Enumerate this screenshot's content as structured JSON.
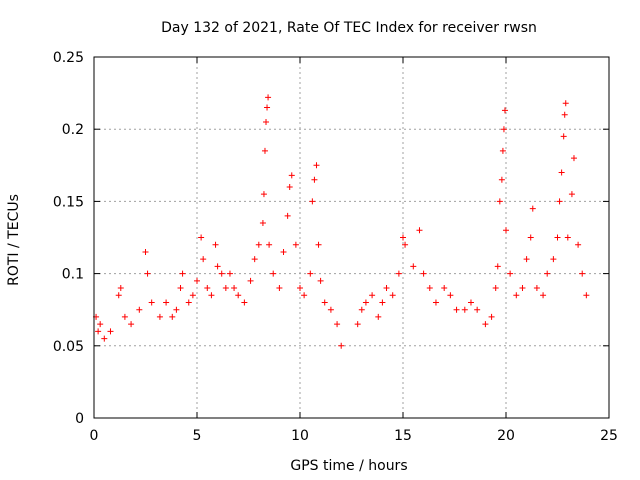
{
  "chart_data": {
    "type": "scatter",
    "title": "Day 132 of 2021, Rate Of TEC Index for receiver rwsn",
    "xlabel": "GPS time / hours",
    "ylabel": "ROTI / TECUs",
    "xlim": [
      0,
      25
    ],
    "ylim": [
      0,
      0.25
    ],
    "x_ticks": [
      "0",
      "5",
      "10",
      "15",
      "20",
      "25"
    ],
    "y_ticks": [
      "0",
      "0.05",
      "0.1",
      "0.15",
      "0.2",
      "0.25"
    ],
    "grid": true,
    "marker": "+",
    "color": "#ff0000",
    "series": [
      {
        "points": [
          [
            0.1,
            0.07
          ],
          [
            0.2,
            0.06
          ],
          [
            0.3,
            0.065
          ],
          [
            0.5,
            0.055
          ],
          [
            0.8,
            0.06
          ],
          [
            1.2,
            0.085
          ],
          [
            1.3,
            0.09
          ],
          [
            1.5,
            0.07
          ],
          [
            1.8,
            0.065
          ],
          [
            2.2,
            0.075
          ],
          [
            2.5,
            0.115
          ],
          [
            2.6,
            0.1
          ],
          [
            2.8,
            0.08
          ],
          [
            3.2,
            0.07
          ],
          [
            3.5,
            0.08
          ],
          [
            3.8,
            0.07
          ],
          [
            4.0,
            0.075
          ],
          [
            4.2,
            0.09
          ],
          [
            4.3,
            0.1
          ],
          [
            4.6,
            0.08
          ],
          [
            4.8,
            0.085
          ],
          [
            5.0,
            0.095
          ],
          [
            5.2,
            0.125
          ],
          [
            5.3,
            0.11
          ],
          [
            5.5,
            0.09
          ],
          [
            5.7,
            0.085
          ],
          [
            5.9,
            0.12
          ],
          [
            6.0,
            0.105
          ],
          [
            6.2,
            0.1
          ],
          [
            6.4,
            0.09
          ],
          [
            6.6,
            0.1
          ],
          [
            6.8,
            0.09
          ],
          [
            7.0,
            0.085
          ],
          [
            7.3,
            0.08
          ],
          [
            7.6,
            0.095
          ],
          [
            7.8,
            0.11
          ],
          [
            8.0,
            0.12
          ],
          [
            8.2,
            0.135
          ],
          [
            8.25,
            0.155
          ],
          [
            8.3,
            0.185
          ],
          [
            8.35,
            0.205
          ],
          [
            8.4,
            0.215
          ],
          [
            8.45,
            0.222
          ],
          [
            8.5,
            0.12
          ],
          [
            8.7,
            0.1
          ],
          [
            9.0,
            0.09
          ],
          [
            9.2,
            0.115
          ],
          [
            9.4,
            0.14
          ],
          [
            9.5,
            0.16
          ],
          [
            9.6,
            0.168
          ],
          [
            9.8,
            0.12
          ],
          [
            10.0,
            0.09
          ],
          [
            10.2,
            0.085
          ],
          [
            10.5,
            0.1
          ],
          [
            10.6,
            0.15
          ],
          [
            10.7,
            0.165
          ],
          [
            10.8,
            0.175
          ],
          [
            10.9,
            0.12
          ],
          [
            11.0,
            0.095
          ],
          [
            11.2,
            0.08
          ],
          [
            11.5,
            0.075
          ],
          [
            11.8,
            0.065
          ],
          [
            12.0,
            0.05
          ],
          [
            12.8,
            0.065
          ],
          [
            13.0,
            0.075
          ],
          [
            13.2,
            0.08
          ],
          [
            13.5,
            0.085
          ],
          [
            13.8,
            0.07
          ],
          [
            14.0,
            0.08
          ],
          [
            14.2,
            0.09
          ],
          [
            14.5,
            0.085
          ],
          [
            14.8,
            0.1
          ],
          [
            15.0,
            0.125
          ],
          [
            15.1,
            0.12
          ],
          [
            15.5,
            0.105
          ],
          [
            15.8,
            0.13
          ],
          [
            16.0,
            0.1
          ],
          [
            16.3,
            0.09
          ],
          [
            16.6,
            0.08
          ],
          [
            17.0,
            0.09
          ],
          [
            17.3,
            0.085
          ],
          [
            17.6,
            0.075
          ],
          [
            18.0,
            0.075
          ],
          [
            18.3,
            0.08
          ],
          [
            18.6,
            0.075
          ],
          [
            19.0,
            0.065
          ],
          [
            19.3,
            0.07
          ],
          [
            19.5,
            0.09
          ],
          [
            19.6,
            0.105
          ],
          [
            19.7,
            0.15
          ],
          [
            19.8,
            0.165
          ],
          [
            19.85,
            0.185
          ],
          [
            19.9,
            0.2
          ],
          [
            19.95,
            0.213
          ],
          [
            20.0,
            0.13
          ],
          [
            20.2,
            0.1
          ],
          [
            20.5,
            0.085
          ],
          [
            20.8,
            0.09
          ],
          [
            21.0,
            0.11
          ],
          [
            21.2,
            0.125
          ],
          [
            21.3,
            0.145
          ],
          [
            21.5,
            0.09
          ],
          [
            21.8,
            0.085
          ],
          [
            22.0,
            0.1
          ],
          [
            22.3,
            0.11
          ],
          [
            22.5,
            0.125
          ],
          [
            22.6,
            0.15
          ],
          [
            22.7,
            0.17
          ],
          [
            22.8,
            0.195
          ],
          [
            22.85,
            0.21
          ],
          [
            22.9,
            0.218
          ],
          [
            23.0,
            0.125
          ],
          [
            23.2,
            0.155
          ],
          [
            23.3,
            0.18
          ],
          [
            23.5,
            0.12
          ],
          [
            23.7,
            0.1
          ],
          [
            23.9,
            0.085
          ]
        ]
      }
    ]
  }
}
